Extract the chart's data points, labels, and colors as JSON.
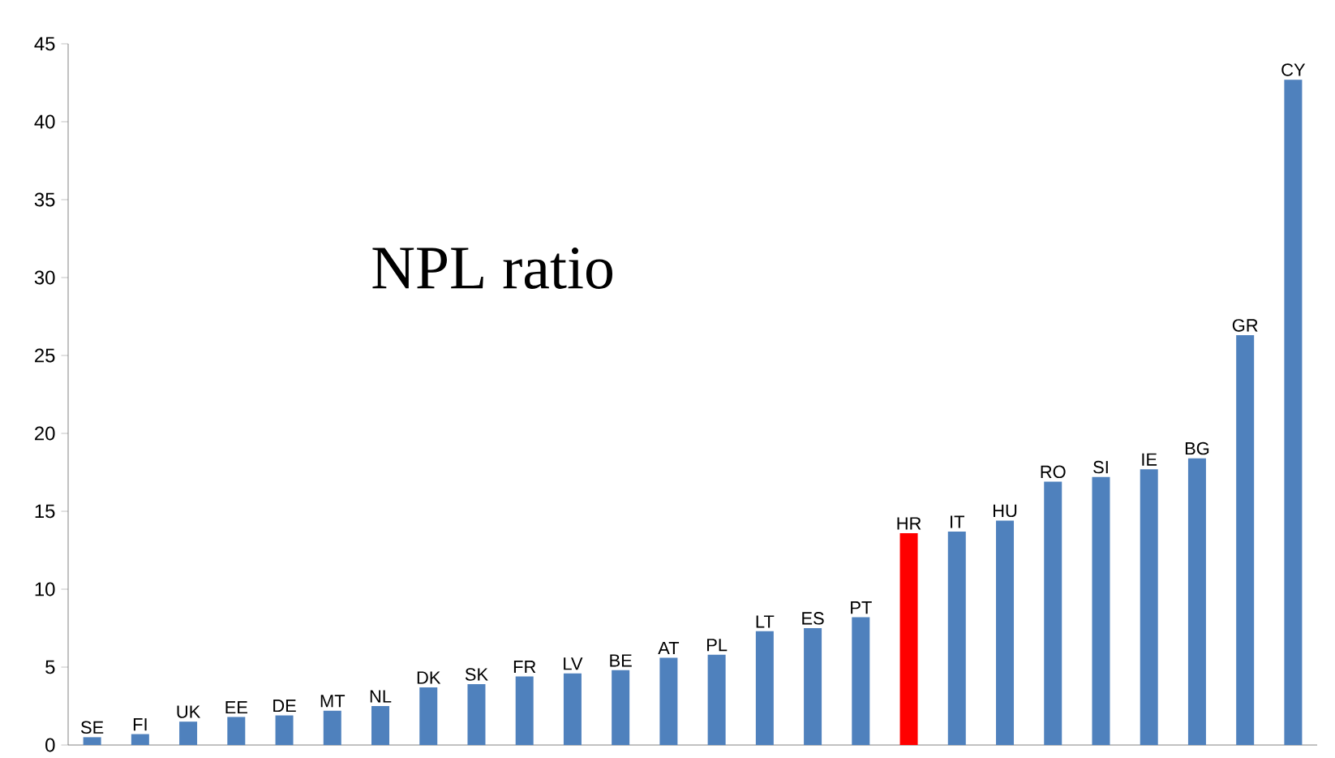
{
  "chart_data": {
    "type": "bar",
    "title": "NPL ratio",
    "categories": [
      "SE",
      "FI",
      "UK",
      "EE",
      "DE",
      "MT",
      "NL",
      "DK",
      "SK",
      "FR",
      "LV",
      "BE",
      "AT",
      "PL",
      "LT",
      "ES",
      "PT",
      "HR",
      "IT",
      "HU",
      "RO",
      "SI",
      "IE",
      "BG",
      "GR",
      "CY"
    ],
    "values": [
      0.5,
      0.7,
      1.5,
      1.8,
      1.9,
      2.2,
      2.5,
      3.7,
      3.9,
      4.4,
      4.6,
      4.8,
      5.6,
      5.8,
      7.3,
      7.5,
      8.2,
      13.6,
      13.7,
      14.4,
      16.9,
      17.2,
      17.7,
      18.4,
      26.3,
      42.7
    ],
    "colors": [
      "#4f81bd",
      "#4f81bd",
      "#4f81bd",
      "#4f81bd",
      "#4f81bd",
      "#4f81bd",
      "#4f81bd",
      "#4f81bd",
      "#4f81bd",
      "#4f81bd",
      "#4f81bd",
      "#4f81bd",
      "#4f81bd",
      "#4f81bd",
      "#4f81bd",
      "#4f81bd",
      "#4f81bd",
      "#ff0000",
      "#4f81bd",
      "#4f81bd",
      "#4f81bd",
      "#4f81bd",
      "#4f81bd",
      "#4f81bd",
      "#4f81bd",
      "#4f81bd"
    ],
    "ylim": [
      0,
      45
    ],
    "yticks": [
      0,
      5,
      10,
      15,
      20,
      25,
      30,
      35,
      40,
      45
    ],
    "grid": false
  }
}
